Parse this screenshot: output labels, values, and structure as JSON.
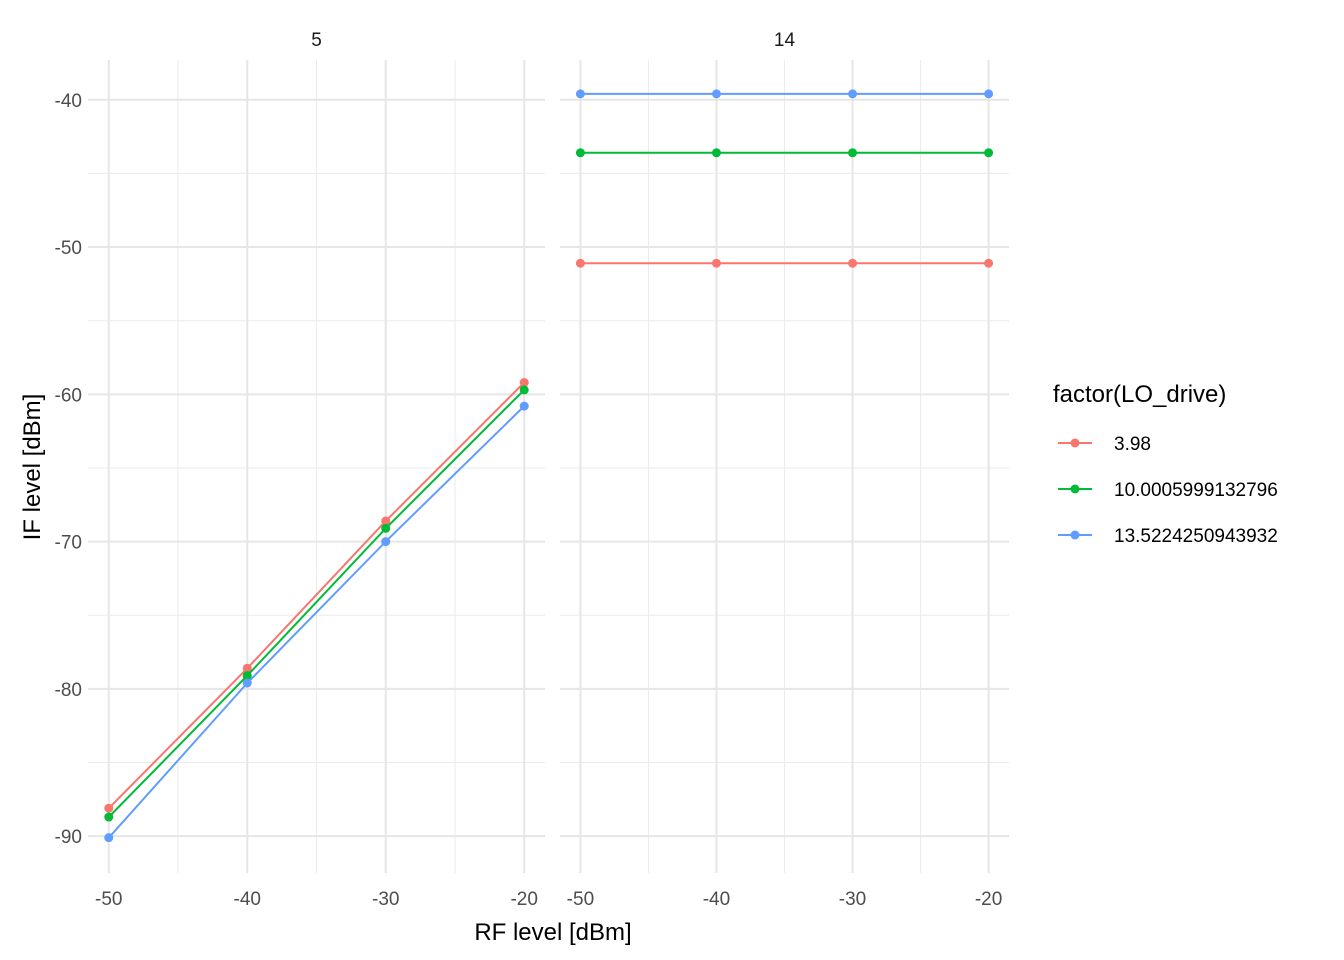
{
  "chart_data": {
    "type": "line",
    "xlabel": "RF level [dBm]",
    "ylabel": "IF level [dBm]",
    "x_ticks": [
      "-50",
      "-40",
      "-30",
      "-20"
    ],
    "y_ticks": [
      "-40",
      "-50",
      "-60",
      "-70",
      "-80",
      "-90"
    ],
    "xlim": [
      -51.5,
      -18.5
    ],
    "ylim": [
      -92.5,
      -37.3
    ],
    "grid": true,
    "legend": {
      "title": "factor(LO_drive)",
      "position": "right",
      "entries": [
        "3.98",
        "10.0005999132796",
        "13.5224250943932"
      ]
    },
    "panels": [
      {
        "label": "5",
        "series": [
          {
            "name": "3.98",
            "color": "#F8766D",
            "x": [
              -50,
              -40,
              -30,
              -20
            ],
            "y": [
              -88.1,
              -78.6,
              -68.6,
              -59.2
            ]
          },
          {
            "name": "10.0005999132796",
            "color": "#00BA38",
            "x": [
              -50,
              -40,
              -30,
              -20
            ],
            "y": [
              -88.7,
              -79.1,
              -69.1,
              -59.7
            ]
          },
          {
            "name": "13.5224250943932",
            "color": "#619CFF",
            "x": [
              -50,
              -40,
              -30,
              -20
            ],
            "y": [
              -90.1,
              -79.6,
              -70.0,
              -60.8
            ]
          }
        ]
      },
      {
        "label": "14",
        "series": [
          {
            "name": "3.98",
            "color": "#F8766D",
            "x": [
              -50,
              -40,
              -30,
              -20
            ],
            "y": [
              -51.1,
              -51.1,
              -51.1,
              -51.1
            ]
          },
          {
            "name": "10.0005999132796",
            "color": "#00BA38",
            "x": [
              -50,
              -40,
              -30,
              -20
            ],
            "y": [
              -43.6,
              -43.6,
              -43.6,
              -43.6
            ]
          },
          {
            "name": "13.5224250943932",
            "color": "#619CFF",
            "x": [
              -50,
              -40,
              -30,
              -20
            ],
            "y": [
              -39.6,
              -39.6,
              -39.6,
              -39.6
            ]
          }
        ]
      }
    ]
  }
}
